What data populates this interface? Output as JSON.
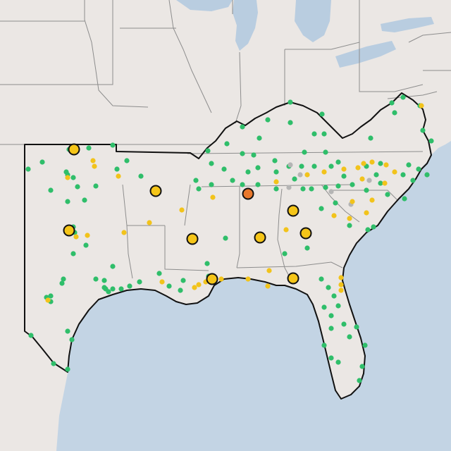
{
  "map": {
    "colors": {
      "land": "#ebe7e4",
      "water": "#c3d4e4",
      "lake": "#b9cde0",
      "state_border": "#8d8d8d",
      "region_outline": "#111111",
      "station_green": "#2fbe6a",
      "station_yellow": "#f2c31b",
      "station_gray": "#b5b5b5",
      "major_yellow": "#f5c518",
      "major_orange": "#e9782c",
      "marker_stroke": "#111111"
    },
    "legend": "none",
    "major_stations": [
      {
        "status": "yellow"
      },
      {
        "status": "yellow"
      },
      {
        "status": "yellow"
      },
      {
        "status": "yellow"
      },
      {
        "status": "orange"
      },
      {
        "status": "yellow"
      },
      {
        "status": "yellow"
      },
      {
        "status": "yellow"
      },
      {
        "status": "yellow"
      },
      {
        "status": "yellow"
      }
    ],
    "station_counts": {
      "green": 150,
      "yellow": 40,
      "gray": 6
    }
  }
}
